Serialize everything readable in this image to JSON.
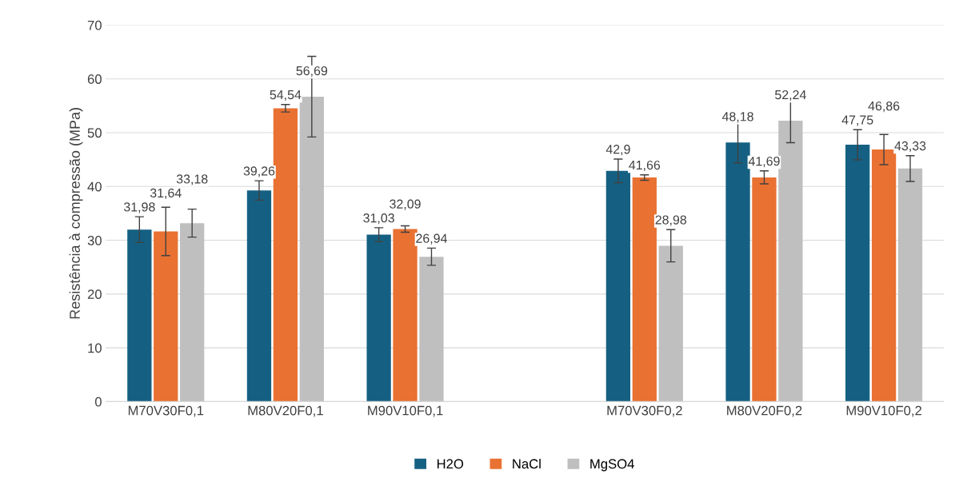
{
  "chart_data": {
    "type": "bar",
    "ylabel": "Resistência à compressão (MPa)",
    "categories": [
      "M70V30F0,1",
      "M80V20F0,1",
      "M90V10F0,1",
      null,
      "M70V30F0,2",
      "M80V20F0,2",
      "M90V10F0,2"
    ],
    "series": [
      {
        "name": "H2O",
        "color": "#156082",
        "values": [
          31.98,
          39.26,
          31.03,
          null,
          42.9,
          48.18,
          47.75
        ],
        "errors": [
          2.4,
          1.8,
          1.3,
          null,
          2.2,
          3.8,
          2.8
        ],
        "value_labels": [
          "31,98",
          "39,26",
          "31,03",
          null,
          "42,9",
          "48,18",
          "47,75"
        ]
      },
      {
        "name": "NaCl",
        "color": "#e97132",
        "values": [
          31.64,
          54.54,
          32.09,
          null,
          41.66,
          41.69,
          46.86
        ],
        "errors": [
          4.5,
          0.7,
          0.6,
          null,
          0.5,
          1.2,
          2.8
        ],
        "value_labels": [
          "31,64",
          "54,54",
          "32,09",
          null,
          "41,66",
          "41,69",
          "46,86"
        ]
      },
      {
        "name": "MgSO4",
        "color": "#bfbfbf",
        "values": [
          33.18,
          56.69,
          26.94,
          null,
          28.98,
          52.24,
          43.33
        ],
        "errors": [
          2.6,
          7.5,
          1.6,
          null,
          3.0,
          4.1,
          2.4
        ],
        "value_labels": [
          "33,18",
          "56,69",
          "26,94",
          null,
          "28,98",
          "52,24",
          "43,33"
        ]
      }
    ],
    "ylim": [
      0,
      70
    ],
    "yticks": [
      0,
      10,
      20,
      30,
      40,
      50,
      60,
      70
    ],
    "grid": "y",
    "legend": "bottom"
  }
}
